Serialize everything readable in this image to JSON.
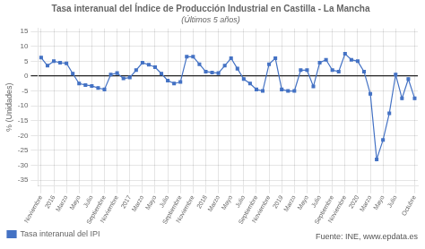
{
  "chart_data": {
    "type": "line",
    "title": "Tasa interanual del Índice de Producción Industrial en Castilla - La Mancha",
    "subtitle": "(Últimos 5 años)",
    "ylabel": "% (Unidades)",
    "categories": [
      "Noviembre",
      null,
      "2016",
      null,
      "Marzo",
      null,
      "Mayo",
      null,
      "Julio",
      null,
      "Septiembre",
      null,
      "Noviembre",
      null,
      "2017",
      null,
      "Marzo",
      null,
      "Mayo",
      null,
      "Julio",
      null,
      "Septiembre",
      null,
      "Noviembre",
      null,
      "2018",
      null,
      "Marzo",
      null,
      "Mayo",
      null,
      "Julio",
      null,
      "Septiembre",
      null,
      "Noviembre",
      null,
      "2019",
      null,
      "Marzo",
      null,
      "Mayo",
      null,
      "Julio",
      null,
      "Septiembre",
      null,
      "Noviembre",
      null,
      "2020",
      null,
      "Marzo",
      null,
      "Mayo",
      null,
      "Julio",
      null,
      null,
      "Octubre"
    ],
    "series": [
      {
        "name": "Tasa interanual del IPI",
        "color": "#4472c4",
        "marker": "square",
        "line_style": "solid",
        "values": [
          6.2,
          3.5,
          5.0,
          4.5,
          4.3,
          0.8,
          -2.5,
          -3.0,
          -3.3,
          -4.0,
          -4.5,
          0.5,
          1.0,
          -0.8,
          -0.5,
          2.0,
          4.5,
          3.8,
          3.0,
          0.8,
          -1.5,
          -2.5,
          -2.0,
          6.5,
          6.5,
          4.0,
          1.5,
          1.2,
          1.0,
          3.5,
          6.0,
          2.5,
          -1.0,
          -2.5,
          -4.5,
          -5.0,
          4.0,
          6.0,
          -4.5,
          -5.0,
          -5.0,
          2.0,
          2.0,
          -3.5,
          4.5,
          5.5,
          2.0,
          1.5,
          7.5,
          5.5,
          5.0,
          1.5,
          -6.0,
          -28.0,
          -21.5,
          -12.5,
          0.5,
          -7.5,
          -1.0,
          -7.5
        ]
      }
    ],
    "ylim": [
      -37,
      16
    ],
    "yticks": [
      -35,
      -30,
      -25,
      -20,
      -15,
      -10,
      -5,
      0,
      5,
      10,
      15
    ],
    "grid": true,
    "legend": "lower left",
    "annotations": [
      "Fuente: INE, www.epdata.es"
    ]
  }
}
